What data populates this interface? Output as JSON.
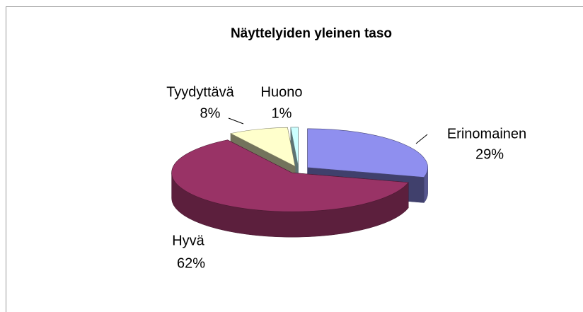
{
  "chart_data": {
    "type": "pie3d",
    "title": "Näyttelyiden yleinen taso",
    "categories": [
      "Erinomainen",
      "Hyvä",
      "Tyydyttävä",
      "Huono"
    ],
    "values": [
      29,
      62,
      8,
      1
    ],
    "value_labels": [
      "29%",
      "62%",
      "8%",
      "1%"
    ],
    "colors": [
      "#8f8fef",
      "#993366",
      "#ffffcc",
      "#ccffff"
    ]
  }
}
